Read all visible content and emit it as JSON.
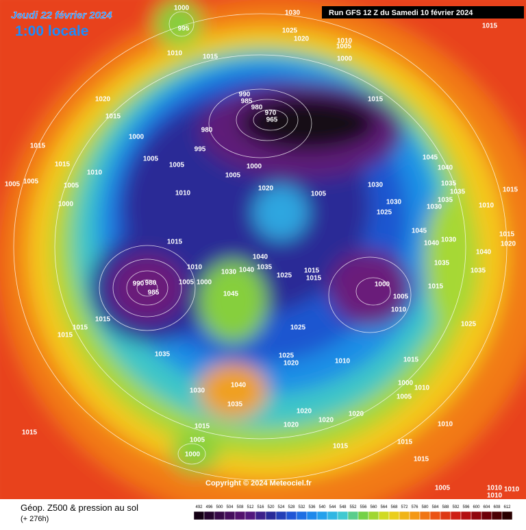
{
  "header": {
    "date": "Jeudi 22 février 2024",
    "time": "1:00 locale",
    "run": "Run GFS 12 Z du Samedi 10 février 2024"
  },
  "pressure_labels": [
    "1000",
    "995",
    "1010",
    "1015",
    "1030",
    "1025",
    "1020",
    "1010",
    "1005",
    "1000",
    "1015",
    "1020",
    "1015",
    "1000",
    "990",
    "985",
    "980",
    "970",
    "965",
    "980",
    "995",
    "1015",
    "1015",
    "1005",
    "1005",
    "1000",
    "1005",
    "1015",
    "1010",
    "1005",
    "1005",
    "1005",
    "1000",
    "1010",
    "1020",
    "1005",
    "1030",
    "1045",
    "1040",
    "1035",
    "1035",
    "1030",
    "1035",
    "1015",
    "1010",
    "1030",
    "1025",
    "1015",
    "1045",
    "1040",
    "1030",
    "1015",
    "1020",
    "1040",
    "1035",
    "1010",
    "1030",
    "1040",
    "1025",
    "1015",
    "1015",
    "990",
    "980",
    "985",
    "1005",
    "1000",
    "1045",
    "1000",
    "1035",
    "1035",
    "1040",
    "1015",
    "1005",
    "1010",
    "1025",
    "1015",
    "1015",
    "1015",
    "1025",
    "1035",
    "1025",
    "1020",
    "1010",
    "1015",
    "1040",
    "1030",
    "1035",
    "1000",
    "1010",
    "1005",
    "1020",
    "1020",
    "1020",
    "1020",
    "1015",
    "1005",
    "1000",
    "1015",
    "1010",
    "1015",
    "1015",
    "1015",
    "1005",
    "1010",
    "1010",
    "1010"
  ],
  "footer": {
    "copyright": "Copyright © 2024 Meteociel.fr",
    "legend_title": "Géop. Z500 & pression au sol",
    "lead_time": "(+ 276h)",
    "scale": [
      "492",
      "496",
      "500",
      "504",
      "508",
      "512",
      "516",
      "520",
      "524",
      "528",
      "532",
      "536",
      "540",
      "544",
      "548",
      "552",
      "556",
      "560",
      "564",
      "568",
      "572",
      "576",
      "580",
      "584",
      "588",
      "592",
      "596",
      "600",
      "604",
      "608",
      "612"
    ]
  }
}
